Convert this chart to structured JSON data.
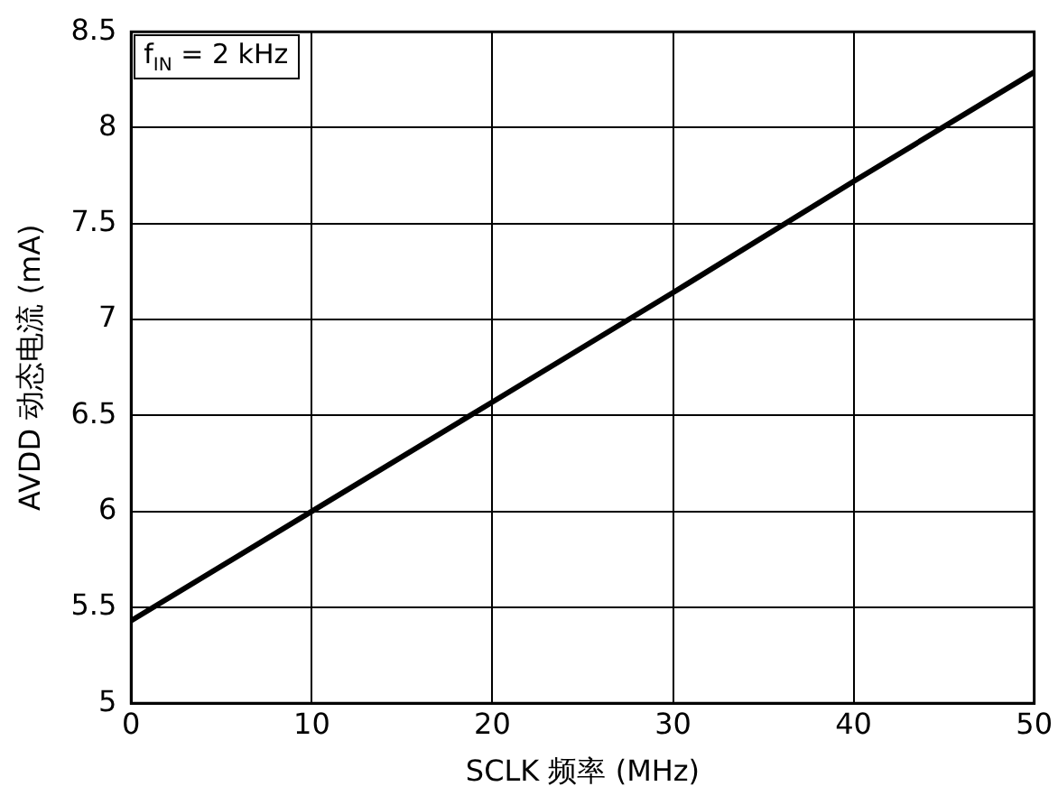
{
  "chart_data": {
    "type": "line",
    "xlabel": "SCLK 频率 (MHz)",
    "ylabel": "AVDD 动态电流 (mA)",
    "annotations": [
      "f$_{IN}$ = 2 kHz"
    ],
    "x": [
      0,
      10,
      20,
      30,
      40,
      50
    ],
    "series": [
      {
        "color": "#000000",
        "values": [
          5.43,
          6.0,
          6.57,
          7.14,
          7.72,
          8.29
        ]
      }
    ],
    "xlim": [
      0,
      50
    ],
    "xticks": [
      0,
      10,
      20,
      30,
      40,
      50
    ],
    "ylim": [
      5,
      8.5
    ],
    "yticks": [
      5,
      5.5,
      6,
      6.5,
      7,
      7.5,
      8,
      8.5
    ],
    "grid": true,
    "legend": false,
    "marker": "none",
    "line_style": "solid"
  }
}
